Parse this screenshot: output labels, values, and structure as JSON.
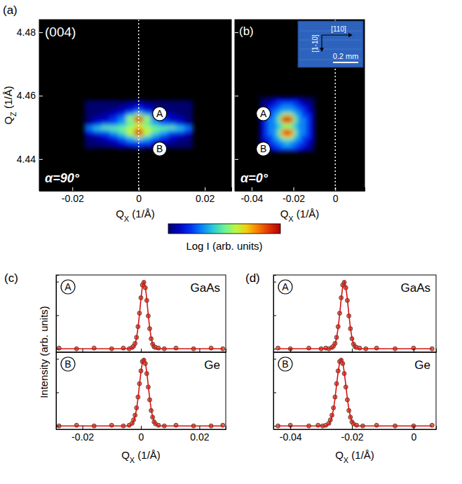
{
  "colorbar": {
    "label": "Log I (arb. units)",
    "range": [
      0,
      10
    ]
  },
  "chart_data": [
    {
      "type": "heatmap",
      "panel": "(a)",
      "title": "(004)",
      "annotation": "α=90°",
      "xlabel": "QX (1/Å)",
      "ylabel": "QZ (1/Å)",
      "xlim": [
        -0.03,
        0.028
      ],
      "ylim": [
        4.43,
        4.484
      ],
      "xticks": [
        -0.02,
        0,
        0.02
      ],
      "yticks": [
        4.44,
        4.46,
        4.48
      ],
      "reference_x": 0,
      "peaks": [
        {
          "label": "A",
          "qx": 0,
          "qz": 4.453
        },
        {
          "label": "B",
          "qx": 0,
          "qz": 4.4485
        }
      ],
      "qx": [
        -0.015,
        -0.0125,
        -0.01,
        -0.0075,
        -0.005,
        -0.0025,
        0,
        0.0025,
        0.005,
        0.0075,
        0.01,
        0.0125,
        0.015
      ],
      "qz": [
        4.444,
        4.445,
        4.446,
        4.447,
        4.448,
        4.449,
        4.45,
        4.451,
        4.452,
        4.453,
        4.454,
        4.455,
        4.456,
        4.457,
        4.458
      ],
      "z": [
        [
          0,
          0,
          0,
          0,
          1,
          1,
          2,
          1,
          1,
          0,
          0,
          0,
          0
        ],
        [
          0,
          0,
          0,
          1,
          1,
          2,
          2,
          2,
          1,
          1,
          0,
          0,
          0
        ],
        [
          0,
          0,
          1,
          1,
          2,
          3,
          3,
          3,
          2,
          1,
          1,
          0,
          0
        ],
        [
          0,
          1,
          1,
          2,
          3,
          4,
          6,
          4,
          3,
          2,
          1,
          1,
          0
        ],
        [
          1,
          1,
          2,
          3,
          4,
          6,
          9,
          6,
          4,
          3,
          2,
          1,
          1
        ],
        [
          2,
          3,
          3,
          4,
          5,
          6,
          9,
          6,
          5,
          4,
          3,
          3,
          2
        ],
        [
          3,
          4,
          5,
          5,
          5,
          6,
          7,
          6,
          5,
          5,
          5,
          4,
          3
        ],
        [
          1,
          2,
          3,
          3,
          4,
          5,
          6,
          5,
          4,
          3,
          3,
          2,
          1
        ],
        [
          0,
          1,
          1,
          2,
          3,
          5,
          8,
          5,
          3,
          2,
          1,
          1,
          0
        ],
        [
          0,
          1,
          1,
          2,
          3,
          6,
          10,
          6,
          3,
          2,
          1,
          1,
          0
        ],
        [
          0,
          0,
          1,
          1,
          2,
          4,
          6,
          4,
          2,
          1,
          1,
          0,
          0
        ],
        [
          0,
          0,
          0,
          1,
          1,
          2,
          3,
          2,
          1,
          1,
          0,
          0,
          0
        ],
        [
          0,
          0,
          0,
          0,
          1,
          1,
          2,
          1,
          1,
          0,
          0,
          0,
          0
        ],
        [
          0,
          0,
          0,
          0,
          0,
          1,
          1,
          1,
          0,
          0,
          0,
          0,
          0
        ],
        [
          0,
          0,
          0,
          0,
          0,
          0,
          1,
          0,
          0,
          0,
          0,
          0,
          0
        ]
      ]
    },
    {
      "type": "heatmap",
      "panel": "(b)",
      "annotation": "α=0°",
      "xlabel": "QX (1/Å)",
      "xlim": [
        -0.048,
        0.014
      ],
      "ylim": [
        4.43,
        4.484
      ],
      "xticks": [
        -0.04,
        -0.02,
        0
      ],
      "yticks": [
        4.44,
        4.46,
        4.48
      ],
      "tick_labels": "x",
      "reference_x": 0,
      "peaks": [
        {
          "label": "A",
          "qx": -0.023,
          "qz": 4.453
        },
        {
          "label": "B",
          "qx": -0.023,
          "qz": 4.4485
        }
      ],
      "inset": {
        "labels": [
          "[110]",
          "[1-10]"
        ],
        "scale_bar": "0.2 mm"
      },
      "qx": [
        -0.035,
        -0.033,
        -0.031,
        -0.029,
        -0.027,
        -0.025,
        -0.023,
        -0.021,
        -0.019,
        -0.017,
        -0.015,
        -0.013,
        -0.011
      ],
      "qz": [
        4.443,
        4.444,
        4.445,
        4.446,
        4.447,
        4.448,
        4.449,
        4.45,
        4.451,
        4.452,
        4.453,
        4.454,
        4.455,
        4.456,
        4.457,
        4.458,
        4.459
      ],
      "z": [
        [
          0,
          0,
          1,
          1,
          2,
          2,
          2,
          2,
          2,
          1,
          1,
          0,
          0
        ],
        [
          0,
          1,
          1,
          2,
          2,
          3,
          3,
          3,
          2,
          2,
          1,
          1,
          0
        ],
        [
          0,
          1,
          2,
          2,
          3,
          3,
          4,
          3,
          3,
          2,
          2,
          1,
          0
        ],
        [
          1,
          1,
          2,
          3,
          3,
          4,
          4,
          4,
          3,
          3,
          2,
          1,
          1
        ],
        [
          1,
          2,
          2,
          3,
          4,
          6,
          7,
          6,
          4,
          3,
          2,
          2,
          1
        ],
        [
          1,
          2,
          3,
          3,
          5,
          8,
          9,
          8,
          5,
          3,
          3,
          2,
          1
        ],
        [
          1,
          2,
          3,
          3,
          5,
          8,
          9,
          8,
          5,
          3,
          3,
          2,
          1
        ],
        [
          1,
          2,
          3,
          3,
          4,
          5,
          6,
          5,
          4,
          3,
          3,
          2,
          1
        ],
        [
          1,
          2,
          3,
          3,
          4,
          5,
          6,
          5,
          4,
          3,
          3,
          2,
          1
        ],
        [
          1,
          2,
          3,
          3,
          5,
          8,
          9,
          8,
          5,
          3,
          3,
          2,
          1
        ],
        [
          1,
          2,
          3,
          3,
          5,
          9,
          10,
          9,
          5,
          3,
          3,
          2,
          1
        ],
        [
          1,
          2,
          2,
          3,
          4,
          6,
          7,
          6,
          4,
          3,
          2,
          2,
          1
        ],
        [
          1,
          1,
          2,
          3,
          3,
          4,
          4,
          4,
          3,
          3,
          2,
          1,
          1
        ],
        [
          0,
          1,
          2,
          2,
          3,
          3,
          3,
          3,
          3,
          2,
          2,
          1,
          0
        ],
        [
          0,
          1,
          1,
          2,
          2,
          3,
          3,
          3,
          2,
          2,
          1,
          1,
          0
        ],
        [
          0,
          0,
          1,
          1,
          2,
          2,
          2,
          2,
          2,
          1,
          1,
          0,
          0
        ],
        [
          0,
          0,
          0,
          1,
          1,
          1,
          1,
          1,
          1,
          1,
          0,
          0,
          0
        ]
      ]
    },
    {
      "type": "scatter",
      "panel": "(c)",
      "ylabel": "Intensity (arb. units)",
      "xlabel": "QX (1/Å)",
      "xlim": [
        -0.029,
        0.029
      ],
      "xticks": [
        -0.02,
        0,
        0.02
      ],
      "subplots": [
        {
          "label": "A",
          "title": "GaAs",
          "ylim": [
            -0.05,
            1.1
          ],
          "yticks": [
            0,
            0.5,
            1
          ],
          "tick_labels": false,
          "x": [
            -0.028,
            -0.022,
            -0.016,
            -0.01,
            -0.006,
            -0.004,
            -0.003,
            -0.0025,
            -0.002,
            -0.0015,
            -0.001,
            -0.0005,
            0,
            0.0005,
            0.001,
            0.0015,
            0.002,
            0.0025,
            0.003,
            0.0035,
            0.004,
            0.0045,
            0.005,
            0.006,
            0.008,
            0.012,
            0.018,
            0.024,
            0.028
          ],
          "series": [
            {
              "type": "scatter",
              "marker": "circle",
              "color": "#f0654a",
              "values": [
                0.01,
                0.0,
                0.01,
                0.0,
                0.01,
                0.0,
                0.02,
                0.04,
                0.08,
                0.17,
                0.33,
                0.53,
                0.76,
                0.95,
                0.99,
                0.91,
                0.72,
                0.49,
                0.3,
                0.15,
                0.07,
                0.03,
                0.02,
                0.01,
                0.0,
                0.01,
                0.0,
                0.01,
                0.0
              ]
            },
            {
              "type": "line",
              "line_style": "solid",
              "color": "#d41414",
              "values": [
                0,
                0,
                0,
                0,
                0,
                0,
                0.01,
                0.03,
                0.07,
                0.16,
                0.31,
                0.51,
                0.74,
                0.93,
                1.0,
                0.93,
                0.74,
                0.51,
                0.31,
                0.16,
                0.07,
                0.03,
                0.01,
                0,
                0,
                0,
                0,
                0,
                0
              ]
            }
          ]
        },
        {
          "label": "B",
          "title": "Ge",
          "ylim": [
            -0.05,
            1.1
          ],
          "yticks": [
            0,
            0.5,
            1
          ],
          "tick_labels": "x",
          "x": [
            -0.028,
            -0.022,
            -0.016,
            -0.01,
            -0.006,
            -0.004,
            -0.003,
            -0.0025,
            -0.002,
            -0.0015,
            -0.001,
            -0.0005,
            0,
            0.0005,
            0.001,
            0.0015,
            0.002,
            0.0025,
            0.003,
            0.0035,
            0.004,
            0.0045,
            0.005,
            0.006,
            0.008,
            0.012,
            0.018,
            0.024,
            0.028
          ],
          "series": [
            {
              "type": "scatter",
              "marker": "circle",
              "color": "#f0654a",
              "values": [
                0.0,
                0.01,
                0.0,
                0.01,
                0.0,
                0.01,
                0.04,
                0.09,
                0.16,
                0.27,
                0.43,
                0.63,
                0.82,
                0.96,
                0.98,
                0.93,
                0.78,
                0.58,
                0.39,
                0.23,
                0.13,
                0.06,
                0.03,
                0.01,
                0.0,
                0.01,
                0.0,
                0.0,
                0.01
              ]
            },
            {
              "type": "line",
              "line_style": "solid",
              "color": "#d41414",
              "values": [
                0,
                0,
                0,
                0,
                0,
                0,
                0.03,
                0.07,
                0.14,
                0.25,
                0.41,
                0.61,
                0.8,
                0.95,
                1.0,
                0.95,
                0.8,
                0.61,
                0.41,
                0.25,
                0.14,
                0.07,
                0.03,
                0,
                0,
                0,
                0,
                0,
                0
              ]
            }
          ]
        }
      ]
    },
    {
      "type": "scatter",
      "panel": "(d)",
      "xlabel": "QX (1/Å)",
      "xlim": [
        -0.0455,
        0.0073
      ],
      "xticks": [
        -0.04,
        -0.02,
        0
      ],
      "subplots": [
        {
          "label": "A",
          "title": "GaAs",
          "ylim": [
            -0.05,
            1.1
          ],
          "yticks": [
            0,
            0.5,
            1
          ],
          "tick_labels": false,
          "x": [
            -0.044,
            -0.04,
            -0.034,
            -0.03,
            -0.0285,
            -0.0275,
            -0.0265,
            -0.026,
            -0.0255,
            -0.025,
            -0.0245,
            -0.024,
            -0.0235,
            -0.023,
            -0.0225,
            -0.022,
            -0.0215,
            -0.021,
            -0.0205,
            -0.02,
            -0.0195,
            -0.019,
            -0.0185,
            -0.0175,
            -0.0155,
            -0.012,
            -0.006,
            0.0,
            0.006
          ],
          "series": [
            {
              "type": "scatter",
              "marker": "circle",
              "color": "#f0654a",
              "values": [
                0.01,
                0.0,
                0.01,
                0.0,
                0.01,
                0.0,
                0.02,
                0.04,
                0.08,
                0.17,
                0.33,
                0.53,
                0.76,
                0.95,
                0.99,
                0.91,
                0.72,
                0.49,
                0.3,
                0.15,
                0.07,
                0.03,
                0.02,
                0.01,
                0.0,
                0.01,
                0.0,
                0.01,
                0.0
              ]
            },
            {
              "type": "line",
              "line_style": "solid",
              "color": "#d41414",
              "values": [
                0,
                0,
                0,
                0,
                0,
                0,
                0.01,
                0.03,
                0.07,
                0.16,
                0.31,
                0.51,
                0.74,
                0.93,
                1.0,
                0.93,
                0.74,
                0.51,
                0.31,
                0.16,
                0.07,
                0.03,
                0.01,
                0,
                0,
                0,
                0,
                0,
                0
              ]
            }
          ]
        },
        {
          "label": "B",
          "title": "Ge",
          "ylim": [
            -0.05,
            1.1
          ],
          "yticks": [
            0,
            0.5,
            1
          ],
          "tick_labels": "x",
          "x": [
            -0.044,
            -0.04,
            -0.034,
            -0.031,
            -0.0295,
            -0.0285,
            -0.0275,
            -0.027,
            -0.0265,
            -0.026,
            -0.0255,
            -0.025,
            -0.0245,
            -0.024,
            -0.0235,
            -0.023,
            -0.0225,
            -0.022,
            -0.0215,
            -0.021,
            -0.0205,
            -0.02,
            -0.0195,
            -0.0185,
            -0.0165,
            -0.012,
            -0.006,
            0.0,
            0.006
          ],
          "series": [
            {
              "type": "scatter",
              "marker": "circle",
              "color": "#f0654a",
              "values": [
                0.0,
                0.01,
                0.0,
                0.01,
                0.0,
                0.01,
                0.04,
                0.09,
                0.16,
                0.27,
                0.43,
                0.63,
                0.82,
                0.96,
                0.98,
                0.93,
                0.78,
                0.58,
                0.39,
                0.23,
                0.13,
                0.06,
                0.03,
                0.01,
                0.0,
                0.01,
                0.0,
                0.0,
                0.01
              ]
            },
            {
              "type": "line",
              "line_style": "solid",
              "color": "#d41414",
              "values": [
                0,
                0,
                0,
                0,
                0,
                0,
                0.03,
                0.07,
                0.14,
                0.25,
                0.41,
                0.61,
                0.8,
                0.95,
                1.0,
                0.95,
                0.8,
                0.61,
                0.41,
                0.25,
                0.14,
                0.07,
                0.03,
                0,
                0,
                0,
                0,
                0,
                0
              ]
            }
          ]
        }
      ]
    }
  ]
}
